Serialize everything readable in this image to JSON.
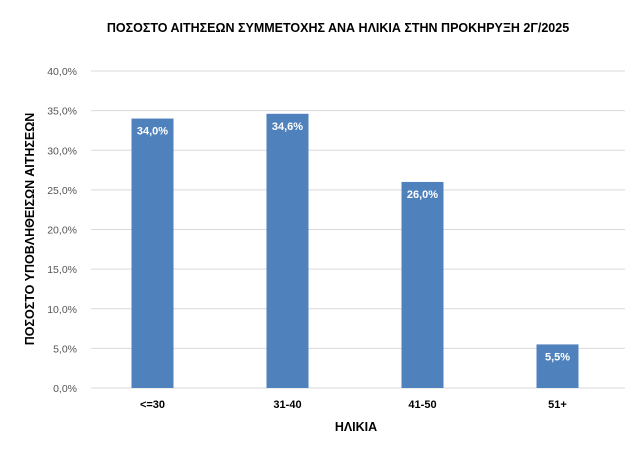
{
  "chart_data": {
    "type": "bar",
    "title": "ΠΟΣΟΣΤΟ ΑΙΤΗΣΕΩΝ ΣΥΜΜΕΤΟΧΗΣ ΑΝΑ ΗΛΙΚΙΑ ΣΤΗΝ ΠΡΟΚΗΡΥΞΗ 2Γ/2025",
    "xlabel": "ΗΛΙΚΙΑ",
    "ylabel": "ΠΟΣΟΣΤΟ ΥΠΟΒΛΗΘΕΙΣΩΝ ΑΙΤΗΣΕΩΝ",
    "categories": [
      "<=30",
      "31-40",
      "41-50",
      "51+"
    ],
    "values": [
      34.0,
      34.6,
      26.0,
      5.5
    ],
    "value_labels": [
      "34,0%",
      "34,6%",
      "26,0%",
      "5,5%"
    ],
    "ylim": [
      0,
      40
    ],
    "yticks": [
      0,
      5,
      10,
      15,
      20,
      25,
      30,
      35,
      40
    ],
    "ytick_labels": [
      "0,0%",
      "5,0%",
      "10,0%",
      "15,0%",
      "20,0%",
      "25,0%",
      "30,0%",
      "35,0%",
      "40,0%"
    ],
    "grid": true,
    "legend": "none",
    "bar_color": "#4f81bd"
  }
}
